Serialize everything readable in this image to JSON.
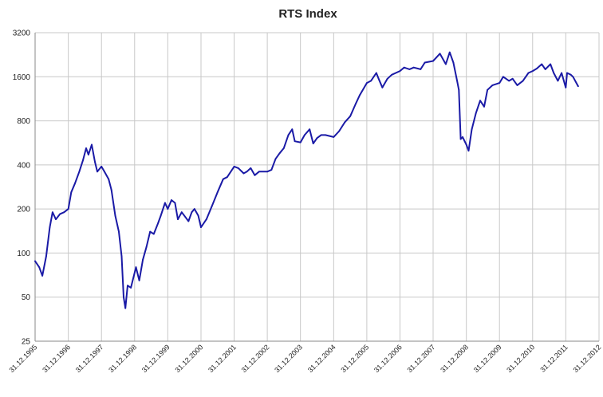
{
  "chart_data": {
    "type": "line",
    "title": "RTS Index",
    "xlabel": "",
    "ylabel": "",
    "y_scale": "log2",
    "ylim": [
      25,
      3200
    ],
    "y_ticks": [
      3200,
      1600,
      800,
      400,
      200,
      100,
      50,
      25
    ],
    "y_tick_labels": [
      "3200",
      "1600",
      "800",
      "400",
      "200",
      "100",
      "50",
      "25"
    ],
    "xlim": [
      "31.12.1995",
      "31.12.2012"
    ],
    "x_tick_labels": [
      "31.12.1995",
      "31.12.1996",
      "31.12.1997",
      "31.12.1998",
      "31.12.1999",
      "31.12.2000",
      "31.12.2001",
      "31.12.2002",
      "31.12.2003",
      "31.12.2004",
      "31.12.2005",
      "31.12.2006",
      "31.12.2007",
      "31.12.2008",
      "31.12.2009",
      "31.12.2010",
      "31.12.2011",
      "31.12.2012"
    ],
    "grid": true,
    "legend": "none",
    "series": [
      {
        "color": "#1a1aa6",
        "x": [
          "1995-12-31",
          "1996-02-15",
          "1996-03-20",
          "1996-05-01",
          "1996-06-10",
          "1996-07-10",
          "1996-08-15",
          "1996-10-01",
          "1996-11-15",
          "1996-12-31",
          "1997-02-01",
          "1997-03-15",
          "1997-05-01",
          "1997-06-10",
          "1997-07-15",
          "1997-08-10",
          "1997-09-15",
          "1997-10-20",
          "1997-11-15",
          "1997-12-31",
          "1998-02-01",
          "1998-03-20",
          "1998-04-20",
          "1998-06-01",
          "1998-07-10",
          "1998-08-10",
          "1998-09-01",
          "1998-09-20",
          "1998-10-15",
          "1998-11-20",
          "1999-01-15",
          "1999-02-20",
          "1999-04-01",
          "1999-05-10",
          "1999-06-20",
          "1999-07-30",
          "1999-09-15",
          "1999-10-15",
          "1999-12-01",
          "1999-12-31",
          "2000-02-10",
          "2000-03-20",
          "2000-04-20",
          "2000-06-01",
          "2000-07-15",
          "2000-08-15",
          "2000-09-20",
          "2000-10-20",
          "2000-12-01",
          "2000-12-31",
          "2001-03-01",
          "2001-05-01",
          "2001-07-01",
          "2001-09-01",
          "2001-10-15",
          "2001-12-31",
          "2002-02-15",
          "2002-04-15",
          "2002-05-20",
          "2002-07-01",
          "2002-08-15",
          "2002-10-01",
          "2002-12-31",
          "2003-02-15",
          "2003-04-01",
          "2003-05-15",
          "2003-07-01",
          "2003-08-20",
          "2003-10-01",
          "2003-10-30",
          "2003-12-31",
          "2004-02-15",
          "2004-04-10",
          "2004-05-20",
          "2004-07-01",
          "2004-08-15",
          "2004-10-01",
          "2004-12-31",
          "2005-03-01",
          "2005-05-01",
          "2005-07-01",
          "2005-09-01",
          "2005-10-15",
          "2005-12-31",
          "2006-02-15",
          "2006-04-15",
          "2006-05-10",
          "2006-06-20",
          "2006-08-15",
          "2006-10-01",
          "2006-12-31",
          "2007-02-15",
          "2007-04-15",
          "2007-06-01",
          "2007-08-15",
          "2007-10-01",
          "2007-12-31",
          "2008-02-01",
          "2008-03-15",
          "2008-05-19",
          "2008-07-01",
          "2008-08-10",
          "2008-09-20",
          "2008-10-10",
          "2008-10-30",
          "2008-11-20",
          "2008-12-31",
          "2009-01-25",
          "2009-03-01",
          "2009-04-15",
          "2009-06-01",
          "2009-07-15",
          "2009-08-20",
          "2009-10-15",
          "2009-12-31",
          "2010-02-10",
          "2010-04-15",
          "2010-05-25",
          "2010-07-15",
          "2010-09-15",
          "2010-11-15",
          "2010-12-31",
          "2011-02-15",
          "2011-04-10",
          "2011-05-20",
          "2011-07-15",
          "2011-08-20",
          "2011-10-05",
          "2011-11-15",
          "2011-12-31",
          "2012-01-15",
          "2012-02-25",
          "2012-03-20",
          "2012-05-15"
        ],
        "y": [
          88,
          80,
          70,
          95,
          150,
          190,
          170,
          185,
          190,
          200,
          260,
          300,
          360,
          430,
          520,
          470,
          550,
          420,
          360,
          390,
          360,
          320,
          270,
          180,
          140,
          95,
          50,
          42,
          60,
          58,
          80,
          65,
          90,
          110,
          140,
          135,
          160,
          180,
          220,
          200,
          230,
          220,
          170,
          190,
          175,
          165,
          190,
          200,
          180,
          150,
          170,
          210,
          260,
          320,
          330,
          390,
          380,
          350,
          360,
          380,
          340,
          360,
          360,
          370,
          440,
          480,
          520,
          640,
          700,
          580,
          570,
          640,
          700,
          560,
          610,
          640,
          640,
          620,
          680,
          780,
          860,
          1050,
          1200,
          1450,
          1500,
          1700,
          1550,
          1350,
          1550,
          1650,
          1750,
          1850,
          1800,
          1850,
          1800,
          2000,
          2050,
          2150,
          2300,
          1950,
          2350,
          2000,
          1500,
          1300,
          600,
          620,
          550,
          500,
          700,
          900,
          1100,
          1000,
          1300,
          1400,
          1450,
          1600,
          1500,
          1550,
          1400,
          1500,
          1700,
          1750,
          1820,
          1950,
          1800,
          1950,
          1700,
          1500,
          1700,
          1350,
          1700,
          1650,
          1600,
          1380
        ]
      }
    ]
  }
}
